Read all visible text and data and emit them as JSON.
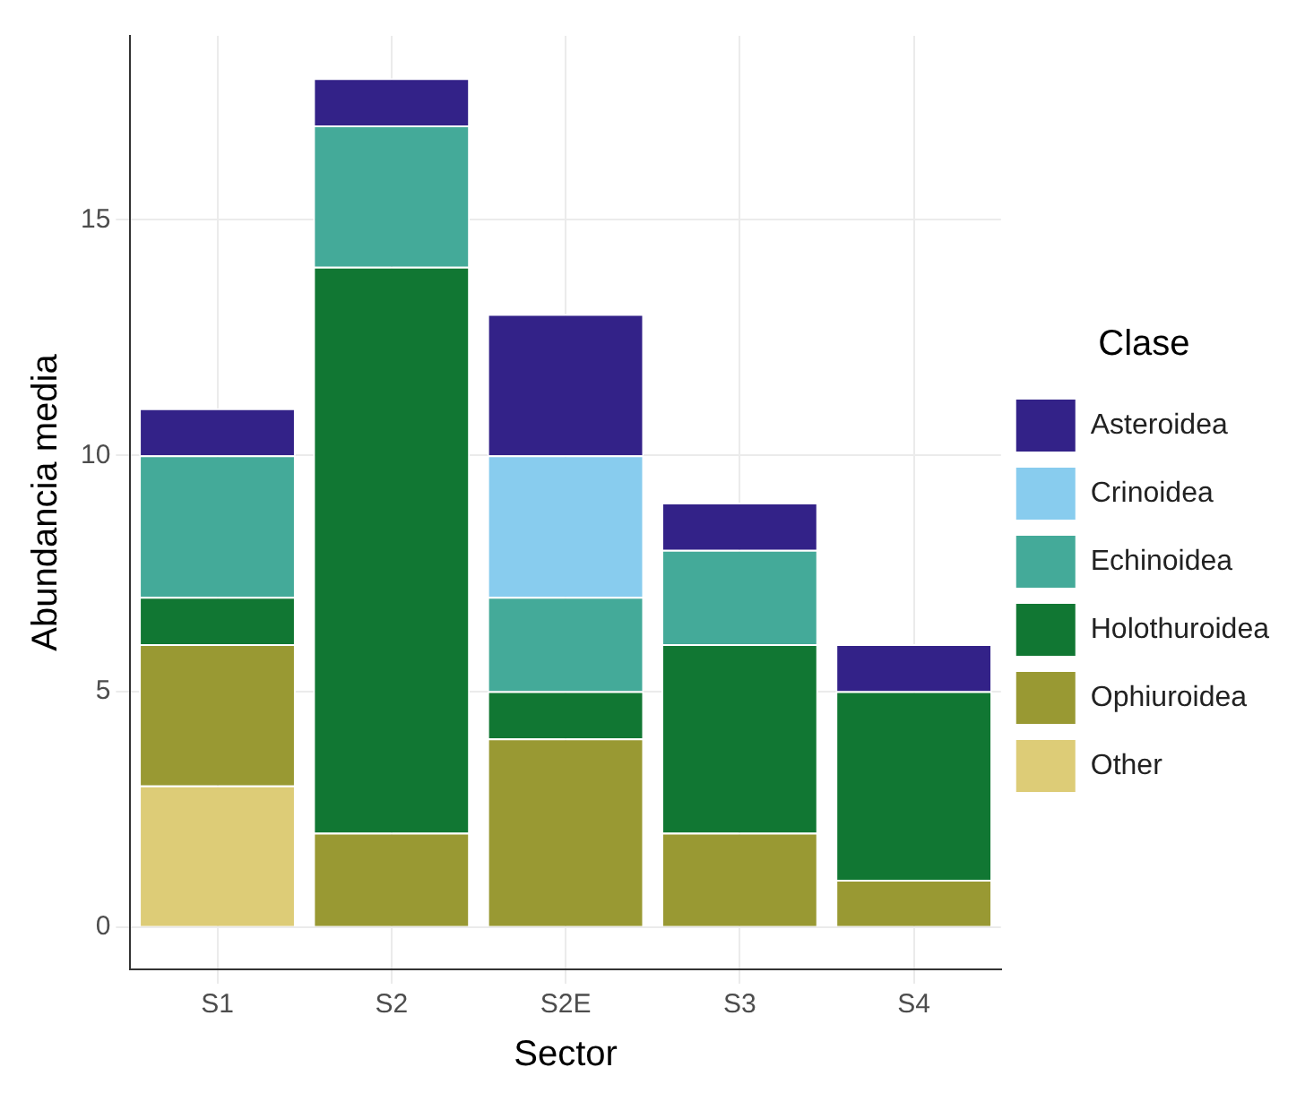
{
  "chart_data": {
    "type": "bar",
    "stacked": true,
    "xlabel": "Sector",
    "ylabel": "Abundancia media",
    "legend_title": "Clase",
    "legend": "right",
    "grid": true,
    "categories": [
      "S1",
      "S2",
      "S2E",
      "S3",
      "S4"
    ],
    "ylim": [
      -0.9,
      18.9
    ],
    "yticks": [
      0,
      5,
      10,
      15
    ],
    "series": [
      {
        "name": "Other",
        "color": "#ddcc77",
        "values": [
          3,
          null,
          null,
          null,
          null
        ]
      },
      {
        "name": "Ophiuroidea",
        "color": "#999933",
        "values": [
          3,
          2,
          4,
          2,
          1
        ]
      },
      {
        "name": "Holothuroidea",
        "color": "#117733",
        "values": [
          1,
          12,
          1,
          4,
          4
        ]
      },
      {
        "name": "Echinoidea",
        "color": "#44aa99",
        "values": [
          3,
          3,
          2,
          2,
          null
        ]
      },
      {
        "name": "Crinoidea",
        "color": "#88ccee",
        "values": [
          null,
          null,
          3,
          null,
          null
        ]
      },
      {
        "name": "Asteroidea",
        "color": "#332288",
        "values": [
          1,
          1,
          3,
          1,
          1
        ]
      }
    ]
  }
}
